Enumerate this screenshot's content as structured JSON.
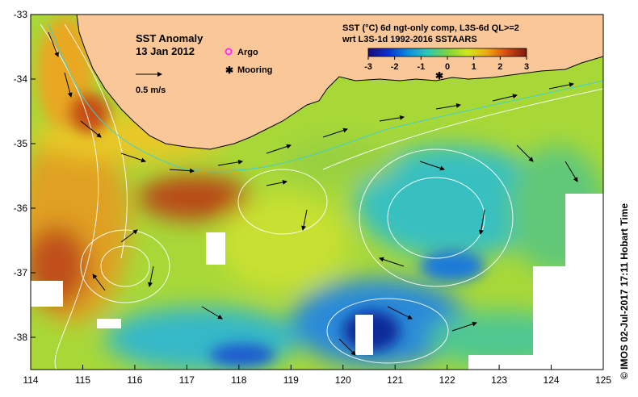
{
  "map": {
    "title": "SST Anomaly",
    "date": "13 Jan 2012",
    "legend": {
      "argo_label": "Argo",
      "mooring_label": "Mooring",
      "argo_color": "#ff33ff",
      "mooring_color": "#000000"
    },
    "scale_arrow_label": "0.5 m/s",
    "colorbar": {
      "title_line1": "SST (°C) 6d ngt-only comp, L3S-6d QL>=2",
      "title_line2": "wrt L3S-1d 1992-2016 SSTAARS",
      "ticks": [
        "-3",
        "-2",
        "-1",
        "0",
        "1",
        "2",
        "3"
      ],
      "colors": [
        "#1a0a7a",
        "#0a2ed8",
        "#0a8ee0",
        "#2ec8b4",
        "#7ed23c",
        "#d2e61e",
        "#f0a814",
        "#d24a14",
        "#7a1a0a"
      ]
    },
    "x_axis": {
      "min": 114,
      "max": 125,
      "ticks": [
        "114",
        "115",
        "116",
        "117",
        "118",
        "119",
        "120",
        "121",
        "122",
        "123",
        "124",
        "125"
      ]
    },
    "y_axis": {
      "min": -38.5,
      "max": -33,
      "ticks": [
        "-33",
        "-34",
        "-35",
        "-36",
        "-37",
        "-38"
      ]
    },
    "colors": {
      "land": "#fac898",
      "coast": "#000000",
      "contour": "#ffffff",
      "current_arrow": "#000000",
      "leeuwin_contour": "#40d0d0"
    },
    "credit": "© IMOS 02-Jul-2017 17:11 Hobart Time"
  }
}
